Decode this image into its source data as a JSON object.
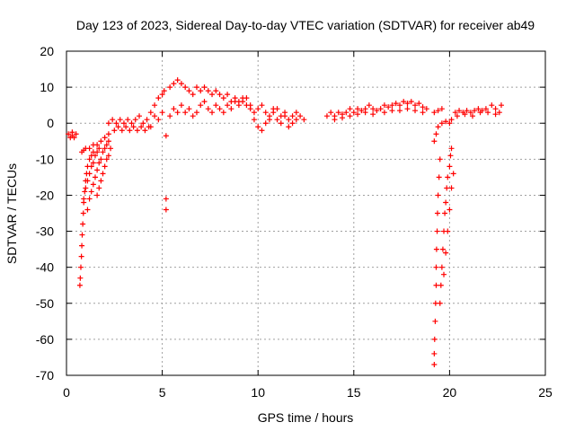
{
  "chart_data": {
    "type": "scatter",
    "title": "Day 123 of 2023, Sidereal Day-to-day VTEC variation (SDTVAR) for receiver ab49",
    "xlabel": "GPS time / hours",
    "ylabel": "SDTVAR / TECUs",
    "xlim": [
      0,
      25
    ],
    "ylim": [
      -70,
      20
    ],
    "xticks": [
      0,
      5,
      10,
      15,
      20,
      25
    ],
    "yticks": [
      -70,
      -60,
      -50,
      -40,
      -30,
      -20,
      -10,
      0,
      10,
      20
    ],
    "grid": true,
    "marker": "+",
    "marker_color": "#ff0000",
    "series": [
      {
        "name": "SDTVAR",
        "points": [
          [
            0.1,
            -3
          ],
          [
            0.2,
            -4
          ],
          [
            0.3,
            -3.5
          ],
          [
            0.4,
            -4
          ],
          [
            0.5,
            -3
          ],
          [
            0.3,
            -2.5
          ],
          [
            0.7,
            -45
          ],
          [
            0.72,
            -43
          ],
          [
            0.75,
            -40
          ],
          [
            0.78,
            -37
          ],
          [
            0.8,
            -34
          ],
          [
            0.82,
            -31
          ],
          [
            0.85,
            -28
          ],
          [
            0.88,
            -25
          ],
          [
            0.9,
            -22
          ],
          [
            0.95,
            -19
          ],
          [
            1.0,
            -16
          ],
          [
            1.05,
            -14
          ],
          [
            1.1,
            -12
          ],
          [
            1.2,
            -10
          ],
          [
            1.3,
            -9
          ],
          [
            1.4,
            -8
          ],
          [
            0.9,
            -21
          ],
          [
            1.0,
            -18
          ],
          [
            1.1,
            -16
          ],
          [
            1.2,
            -14
          ],
          [
            1.3,
            -12
          ],
          [
            1.4,
            -11
          ],
          [
            1.5,
            -9
          ],
          [
            1.6,
            -8
          ],
          [
            1.7,
            -7
          ],
          [
            1.1,
            -24
          ],
          [
            1.2,
            -21
          ],
          [
            1.3,
            -19
          ],
          [
            1.4,
            -17
          ],
          [
            1.5,
            -15
          ],
          [
            1.6,
            -13
          ],
          [
            1.7,
            -11
          ],
          [
            1.8,
            -10
          ],
          [
            1.9,
            -8
          ],
          [
            2.0,
            -7
          ],
          [
            2.1,
            -6
          ],
          [
            2.2,
            -5
          ],
          [
            1.6,
            -20
          ],
          [
            1.7,
            -18
          ],
          [
            1.8,
            -16
          ],
          [
            1.9,
            -14
          ],
          [
            2.0,
            -12
          ],
          [
            2.1,
            -10
          ],
          [
            2.2,
            -9
          ],
          [
            2.3,
            -7
          ],
          [
            0.8,
            -8
          ],
          [
            0.9,
            -7.5
          ],
          [
            1.0,
            -7
          ],
          [
            1.2,
            -7
          ],
          [
            1.4,
            -6
          ],
          [
            1.6,
            -6
          ],
          [
            1.8,
            -5
          ],
          [
            2.0,
            -4
          ],
          [
            2.2,
            -3
          ],
          [
            2.2,
            0
          ],
          [
            2.4,
            1
          ],
          [
            2.6,
            0
          ],
          [
            2.8,
            1
          ],
          [
            3.0,
            0
          ],
          [
            3.2,
            1
          ],
          [
            3.4,
            0
          ],
          [
            3.6,
            1
          ],
          [
            3.8,
            2
          ],
          [
            4.0,
            0
          ],
          [
            4.2,
            1
          ],
          [
            4.4,
            -1
          ],
          [
            4.6,
            2
          ],
          [
            4.8,
            1
          ],
          [
            5.0,
            3
          ],
          [
            2.5,
            -2
          ],
          [
            2.7,
            -1
          ],
          [
            2.9,
            -2
          ],
          [
            3.1,
            -1
          ],
          [
            3.3,
            -2
          ],
          [
            3.5,
            -1
          ],
          [
            3.7,
            -2
          ],
          [
            3.9,
            -1
          ],
          [
            4.1,
            -2
          ],
          [
            4.3,
            -1
          ],
          [
            4.4,
            3
          ],
          [
            4.6,
            5
          ],
          [
            4.8,
            7
          ],
          [
            5.0,
            8
          ],
          [
            5.1,
            9
          ],
          [
            5.2,
            -3.5
          ],
          [
            5.2,
            -21
          ],
          [
            5.2,
            -24
          ],
          [
            5.4,
            10
          ],
          [
            5.6,
            11
          ],
          [
            5.8,
            12
          ],
          [
            6.0,
            11
          ],
          [
            6.2,
            10
          ],
          [
            6.4,
            9
          ],
          [
            6.6,
            8
          ],
          [
            6.8,
            10
          ],
          [
            7.0,
            9
          ],
          [
            7.2,
            10
          ],
          [
            7.4,
            9
          ],
          [
            7.6,
            8
          ],
          [
            7.8,
            9
          ],
          [
            8.0,
            8
          ],
          [
            8.2,
            7
          ],
          [
            8.4,
            8
          ],
          [
            8.6,
            6
          ],
          [
            8.8,
            7
          ],
          [
            9.0,
            6
          ],
          [
            9.2,
            7
          ],
          [
            9.4,
            5
          ],
          [
            9.6,
            4
          ],
          [
            9.8,
            3
          ],
          [
            5.4,
            2
          ],
          [
            5.6,
            4
          ],
          [
            5.8,
            3
          ],
          [
            6.0,
            5
          ],
          [
            6.2,
            3
          ],
          [
            6.4,
            4
          ],
          [
            6.6,
            2
          ],
          [
            6.8,
            3
          ],
          [
            7.0,
            5
          ],
          [
            7.2,
            6
          ],
          [
            7.4,
            4
          ],
          [
            7.6,
            3
          ],
          [
            7.8,
            5
          ],
          [
            8.0,
            4
          ],
          [
            8.2,
            3
          ],
          [
            8.4,
            5
          ],
          [
            8.6,
            4
          ],
          [
            8.8,
            6
          ],
          [
            9.0,
            5
          ],
          [
            9.2,
            6
          ],
          [
            9.4,
            7
          ],
          [
            9.6,
            5
          ],
          [
            9.8,
            1
          ],
          [
            10.0,
            -1
          ],
          [
            10.2,
            -2
          ],
          [
            10.4,
            0
          ],
          [
            10.6,
            1
          ],
          [
            10.8,
            3
          ],
          [
            11.0,
            4
          ],
          [
            11.2,
            2
          ],
          [
            11.4,
            3
          ],
          [
            11.6,
            1
          ],
          [
            11.8,
            2
          ],
          [
            12.0,
            3
          ],
          [
            12.2,
            2
          ],
          [
            12.4,
            1
          ],
          [
            10.0,
            4
          ],
          [
            10.2,
            5
          ],
          [
            10.4,
            3
          ],
          [
            10.6,
            2
          ],
          [
            10.8,
            4
          ],
          [
            11.0,
            1
          ],
          [
            11.2,
            0
          ],
          [
            11.4,
            2
          ],
          [
            11.6,
            -1
          ],
          [
            11.8,
            0
          ],
          [
            12.0,
            1
          ],
          [
            13.6,
            2
          ],
          [
            13.8,
            3
          ],
          [
            14.0,
            2
          ],
          [
            14.2,
            3
          ],
          [
            14.4,
            2.5
          ],
          [
            14.6,
            3
          ],
          [
            14.8,
            4
          ],
          [
            15.0,
            3
          ],
          [
            15.2,
            4
          ],
          [
            15.4,
            3.5
          ],
          [
            15.6,
            4
          ],
          [
            15.8,
            5
          ],
          [
            16.0,
            4
          ],
          [
            16.2,
            3.5
          ],
          [
            14.0,
            1
          ],
          [
            14.4,
            1.5
          ],
          [
            14.8,
            2
          ],
          [
            15.2,
            2.5
          ],
          [
            15.6,
            3
          ],
          [
            16.0,
            2.5
          ],
          [
            16.4,
            4
          ],
          [
            16.6,
            5
          ],
          [
            16.8,
            4.5
          ],
          [
            17.0,
            5
          ],
          [
            17.2,
            5.5
          ],
          [
            17.4,
            5
          ],
          [
            17.6,
            6
          ],
          [
            17.8,
            5.5
          ],
          [
            18.0,
            6
          ],
          [
            18.2,
            5
          ],
          [
            18.4,
            5.5
          ],
          [
            18.6,
            4.5
          ],
          [
            18.8,
            4
          ],
          [
            16.6,
            3
          ],
          [
            17.0,
            3.5
          ],
          [
            17.4,
            3.5
          ],
          [
            17.8,
            4
          ],
          [
            18.2,
            3.5
          ],
          [
            18.6,
            3
          ],
          [
            19.2,
            -67
          ],
          [
            19.2,
            -64
          ],
          [
            19.22,
            -60
          ],
          [
            19.25,
            -55
          ],
          [
            19.27,
            -50
          ],
          [
            19.3,
            -45
          ],
          [
            19.3,
            -40
          ],
          [
            19.32,
            -35
          ],
          [
            19.35,
            -30
          ],
          [
            19.37,
            -25
          ],
          [
            19.4,
            -20
          ],
          [
            19.45,
            -15
          ],
          [
            19.5,
            -10
          ],
          [
            19.5,
            -50
          ],
          [
            19.55,
            -45
          ],
          [
            19.6,
            -40
          ],
          [
            19.65,
            -35
          ],
          [
            19.7,
            -30
          ],
          [
            19.75,
            -25
          ],
          [
            19.8,
            -22
          ],
          [
            19.85,
            -18
          ],
          [
            19.9,
            -15
          ],
          [
            20.0,
            -12
          ],
          [
            20.05,
            -9
          ],
          [
            20.1,
            -7
          ],
          [
            19.7,
            -42
          ],
          [
            19.8,
            -36
          ],
          [
            19.9,
            -30
          ],
          [
            20.0,
            -24
          ],
          [
            20.1,
            -18
          ],
          [
            20.2,
            -14
          ],
          [
            19.2,
            -5
          ],
          [
            19.3,
            -3
          ],
          [
            19.4,
            -1
          ],
          [
            19.6,
            0
          ],
          [
            19.8,
            0.5
          ],
          [
            20.0,
            0
          ],
          [
            20.1,
            1
          ],
          [
            19.2,
            3
          ],
          [
            19.4,
            3.5
          ],
          [
            19.6,
            4
          ],
          [
            20.3,
            3
          ],
          [
            20.5,
            3.5
          ],
          [
            20.7,
            3
          ],
          [
            20.9,
            3.5
          ],
          [
            21.1,
            3
          ],
          [
            21.3,
            3.5
          ],
          [
            21.5,
            4
          ],
          [
            21.7,
            3.5
          ],
          [
            21.9,
            4
          ],
          [
            22.2,
            5
          ],
          [
            22.4,
            4
          ],
          [
            22.6,
            3
          ],
          [
            22.7,
            5
          ],
          [
            20.4,
            2
          ],
          [
            20.8,
            2.5
          ],
          [
            21.2,
            2
          ],
          [
            21.6,
            3
          ],
          [
            22.0,
            3
          ],
          [
            22.4,
            2.5
          ]
        ]
      }
    ]
  }
}
